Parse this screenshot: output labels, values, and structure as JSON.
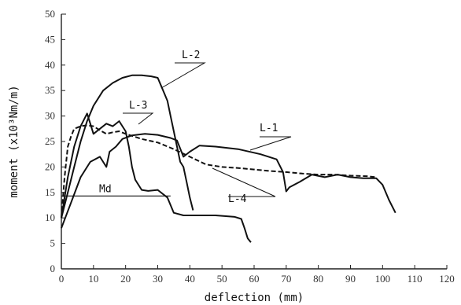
{
  "chart_data": {
    "type": "line",
    "title": "",
    "xlabel": "deflection (mm)",
    "ylabel": "moment (x10³Nm/m)",
    "xlim": [
      0,
      120
    ],
    "ylim": [
      0,
      50
    ],
    "x_ticks": [
      "0",
      "10",
      "20",
      "30",
      "40",
      "50",
      "60",
      "70",
      "80",
      "90",
      "100",
      "110",
      "120"
    ],
    "y_ticks": [
      "0",
      "5",
      "10",
      "15",
      "20",
      "25",
      "30",
      "35",
      "40",
      "45",
      "50"
    ],
    "grid": false,
    "series": [
      {
        "name": "L-1",
        "style": "solid",
        "x": [
          0,
          3,
          6,
          9,
          12,
          14,
          15,
          17,
          19,
          22,
          26,
          30,
          34,
          36,
          38,
          40,
          43,
          48,
          55,
          62,
          67,
          69,
          70,
          71,
          74,
          78,
          82,
          86,
          90,
          94,
          98,
          100,
          102,
          104
        ],
        "y": [
          8,
          13,
          18,
          21,
          22,
          20,
          23,
          24,
          25.5,
          26.2,
          26.5,
          26.3,
          25.7,
          25.2,
          22,
          23,
          24.2,
          24,
          23.5,
          22.5,
          21.5,
          19,
          15.2,
          16,
          17,
          18.5,
          18,
          18.5,
          18,
          17.8,
          17.8,
          16.5,
          13.5,
          11
        ]
      },
      {
        "name": "L-2",
        "style": "solid",
        "x": [
          0,
          2,
          4,
          6,
          8,
          10,
          13,
          16,
          19,
          22,
          25,
          28,
          30,
          31,
          32,
          33,
          34,
          35,
          36,
          37,
          38,
          39,
          40,
          41
        ],
        "y": [
          10,
          15,
          20,
          25,
          29,
          32,
          35,
          36.5,
          37.5,
          38,
          38,
          37.8,
          37.5,
          36,
          34.5,
          33,
          30,
          27,
          24,
          21,
          20,
          17,
          14,
          11.5
        ]
      },
      {
        "name": "L-3",
        "style": "solid",
        "x": [
          0,
          2,
          4,
          6,
          8,
          9,
          10,
          12,
          14,
          16,
          18,
          19,
          20,
          21,
          22,
          23,
          25,
          27,
          30,
          33,
          35,
          38,
          42,
          48,
          54,
          56,
          57,
          58,
          59
        ],
        "y": [
          10,
          18,
          24,
          28,
          30.5,
          28.5,
          26.5,
          27.5,
          28.5,
          28,
          29,
          28,
          27,
          24,
          20,
          17.5,
          15.5,
          15.3,
          15.5,
          14,
          11,
          10.5,
          10.5,
          10.5,
          10.2,
          9.8,
          8,
          6,
          5.2
        ]
      },
      {
        "name": "L-4",
        "style": "dashed",
        "x": [
          0,
          1,
          2,
          3,
          4,
          6,
          8,
          10,
          12,
          14,
          16,
          18,
          20,
          25,
          30,
          35,
          40,
          45,
          50,
          55,
          60,
          65,
          70,
          75,
          80,
          85,
          90,
          95,
          98
        ],
        "y": [
          10,
          18,
          24,
          26,
          27.5,
          28,
          28.2,
          28,
          27.2,
          26.5,
          26.8,
          27,
          26.5,
          25.5,
          24.8,
          23.5,
          22,
          20.5,
          20,
          19.8,
          19.5,
          19.2,
          19,
          18.7,
          18.5,
          18.5,
          18.3,
          18.2,
          18
        ]
      }
    ],
    "annotations": [
      {
        "text": "Md",
        "y": 14.3,
        "x_start": 0,
        "x_end": 34
      }
    ]
  }
}
